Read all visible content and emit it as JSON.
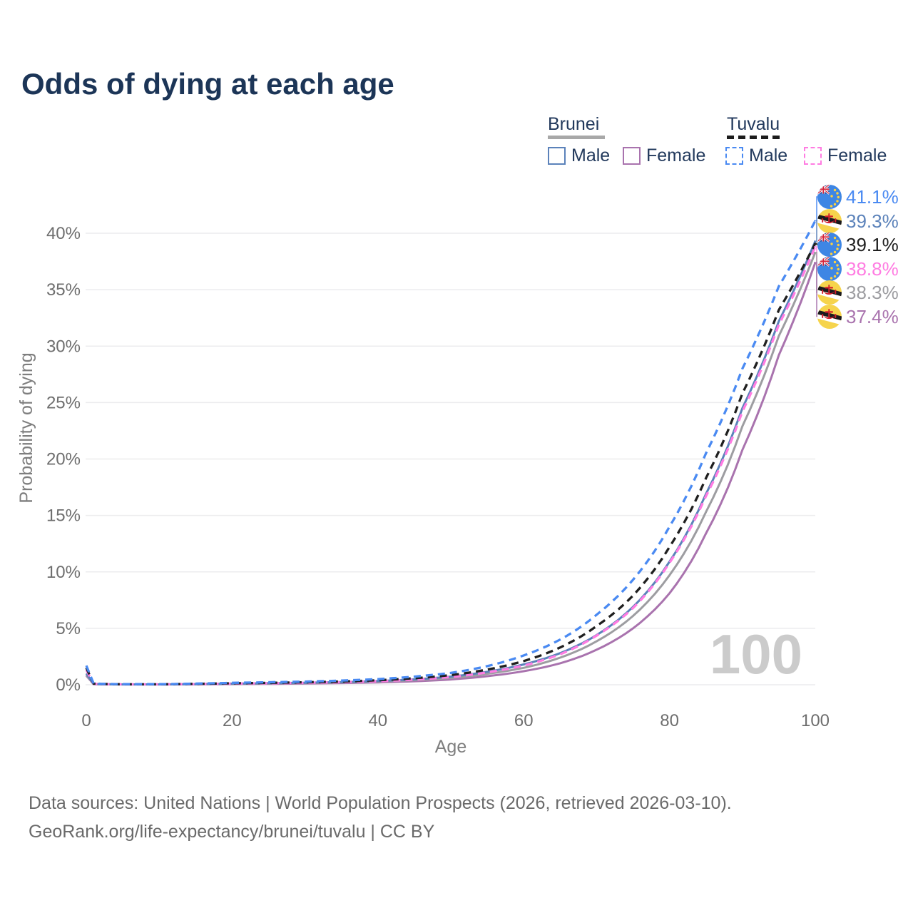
{
  "title": "Odds of dying at each age",
  "watermark": "100",
  "legend": {
    "groups": [
      {
        "country": "Brunei",
        "line_style": "solid",
        "line_color": "#a8a8a8",
        "items": [
          {
            "label": "Male",
            "series": "brunei_male"
          },
          {
            "label": "Female",
            "series": "brunei_female"
          }
        ]
      },
      {
        "country": "Tuvalu",
        "line_style": "dashed",
        "line_color": "#1c1c1c",
        "items": [
          {
            "label": "Male",
            "series": "tuvalu_male"
          },
          {
            "label": "Female",
            "series": "tuvalu_female"
          }
        ]
      }
    ]
  },
  "footer": {
    "line1": "Data sources: United Nations | World Population Prospects (2026, retrieved 2026-03-10).",
    "line2": "GeoRank.org/life-expectancy/brunei/tuvalu | CC BY"
  },
  "chart_data": {
    "type": "line",
    "title": "Odds of dying at each age",
    "xlabel": "Age",
    "ylabel": "Probability of dying",
    "xlim": [
      0,
      100
    ],
    "ylim": [
      0,
      43
    ],
    "xticks": [
      0,
      20,
      40,
      60,
      80,
      100
    ],
    "yticks": [
      0,
      5,
      10,
      15,
      20,
      25,
      30,
      35,
      40
    ],
    "ytick_labels": [
      "0%",
      "5%",
      "10%",
      "15%",
      "20%",
      "25%",
      "30%",
      "35%",
      "40%"
    ],
    "grid": true,
    "legend_position": "top-right",
    "x": [
      0,
      1,
      2,
      5,
      10,
      15,
      20,
      25,
      30,
      35,
      40,
      45,
      50,
      55,
      60,
      65,
      70,
      75,
      80,
      85,
      90,
      95,
      100
    ],
    "series": [
      {
        "key": "brunei_female",
        "name": "Brunei Female",
        "country": "Brunei",
        "sex": "Female",
        "color": "#a973ae",
        "dashed": false,
        "end_value": 37.4,
        "values": [
          0.8,
          0.05,
          0.04,
          0.025,
          0.025,
          0.04,
          0.06,
          0.08,
          0.11,
          0.15,
          0.21,
          0.31,
          0.47,
          0.76,
          1.2,
          1.9,
          3.1,
          5.0,
          8.1,
          13.4,
          20.8,
          29.2,
          37.4
        ]
      },
      {
        "key": "brunei_both",
        "name": "Brunei (both sexes)",
        "country": "Brunei",
        "sex": "Both",
        "color": "#9d9da1",
        "dashed": false,
        "end_value": 38.3,
        "values": [
          0.9,
          0.06,
          0.045,
          0.03,
          0.03,
          0.05,
          0.08,
          0.11,
          0.15,
          0.2,
          0.28,
          0.41,
          0.6,
          0.97,
          1.5,
          2.4,
          3.85,
          6.1,
          9.7,
          15.3,
          22.9,
          30.9,
          38.3
        ]
      },
      {
        "key": "brunei_male",
        "name": "Brunei Male",
        "country": "Brunei",
        "sex": "Male",
        "color": "#5b82ba",
        "dashed": false,
        "end_value": 39.3,
        "values": [
          1.0,
          0.07,
          0.05,
          0.03,
          0.03,
          0.06,
          0.1,
          0.14,
          0.18,
          0.24,
          0.33,
          0.48,
          0.72,
          1.15,
          1.8,
          2.8,
          4.4,
          6.9,
          10.9,
          16.9,
          24.5,
          32.2,
          39.3
        ]
      },
      {
        "key": "tuvalu_female",
        "name": "Tuvalu Female",
        "country": "Tuvalu",
        "sex": "Female",
        "color": "#ff7ce2",
        "dashed": true,
        "end_value": 38.8,
        "values": [
          1.3,
          0.09,
          0.06,
          0.04,
          0.04,
          0.06,
          0.1,
          0.13,
          0.17,
          0.23,
          0.31,
          0.46,
          0.68,
          1.1,
          1.7,
          2.7,
          4.35,
          6.8,
          10.8,
          16.7,
          24.2,
          31.9,
          38.8
        ]
      },
      {
        "key": "tuvalu_both",
        "name": "Tuvalu (both sexes)",
        "country": "Tuvalu",
        "sex": "Both",
        "color": "#1f1f1f",
        "dashed": true,
        "end_value": 39.1,
        "values": [
          1.5,
          0.1,
          0.07,
          0.04,
          0.04,
          0.08,
          0.13,
          0.17,
          0.22,
          0.29,
          0.4,
          0.58,
          0.85,
          1.35,
          2.1,
          3.3,
          5.2,
          7.9,
          12.2,
          18.3,
          25.8,
          33.2,
          39.1
        ]
      },
      {
        "key": "tuvalu_male",
        "name": "Tuvalu Male",
        "country": "Tuvalu",
        "sex": "Male",
        "color": "#4a8af2",
        "dashed": true,
        "end_value": 41.1,
        "values": [
          1.7,
          0.12,
          0.08,
          0.05,
          0.05,
          0.1,
          0.17,
          0.22,
          0.28,
          0.37,
          0.5,
          0.72,
          1.05,
          1.65,
          2.6,
          4.0,
          6.2,
          9.3,
          14.0,
          20.5,
          28.0,
          35.3,
          41.1
        ]
      }
    ],
    "end_labels": [
      {
        "text": "41.1%",
        "series": "tuvalu_male",
        "flag": "tuvalu",
        "color": "#4a8af2"
      },
      {
        "text": "39.3%",
        "series": "brunei_male",
        "flag": "brunei",
        "color": "#5b82ba"
      },
      {
        "text": "39.1%",
        "series": "tuvalu_both",
        "flag": "tuvalu",
        "color": "#1f1f1f"
      },
      {
        "text": "38.8%",
        "series": "tuvalu_female",
        "flag": "tuvalu",
        "color": "#ff7ce2"
      },
      {
        "text": "38.3%",
        "series": "brunei_both",
        "flag": "brunei",
        "color": "#9d9da1"
      },
      {
        "text": "37.4%",
        "series": "brunei_female",
        "flag": "brunei",
        "color": "#a973ae"
      }
    ]
  }
}
